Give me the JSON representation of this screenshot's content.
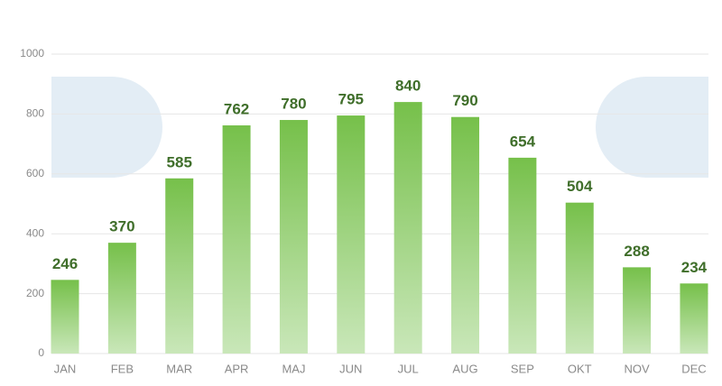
{
  "chart_data": {
    "type": "bar",
    "categories": [
      "JAN",
      "FEB",
      "MAR",
      "APR",
      "MAJ",
      "JUN",
      "JUL",
      "AUG",
      "SEP",
      "OKT",
      "NOV",
      "DEC"
    ],
    "values": [
      246,
      370,
      585,
      762,
      780,
      795,
      840,
      790,
      654,
      504,
      288,
      234
    ],
    "color": "#76c04a",
    "ylim": [
      0,
      1000
    ],
    "yticks": [
      0,
      200,
      400,
      600,
      800,
      1000
    ],
    "grid": true
  }
}
